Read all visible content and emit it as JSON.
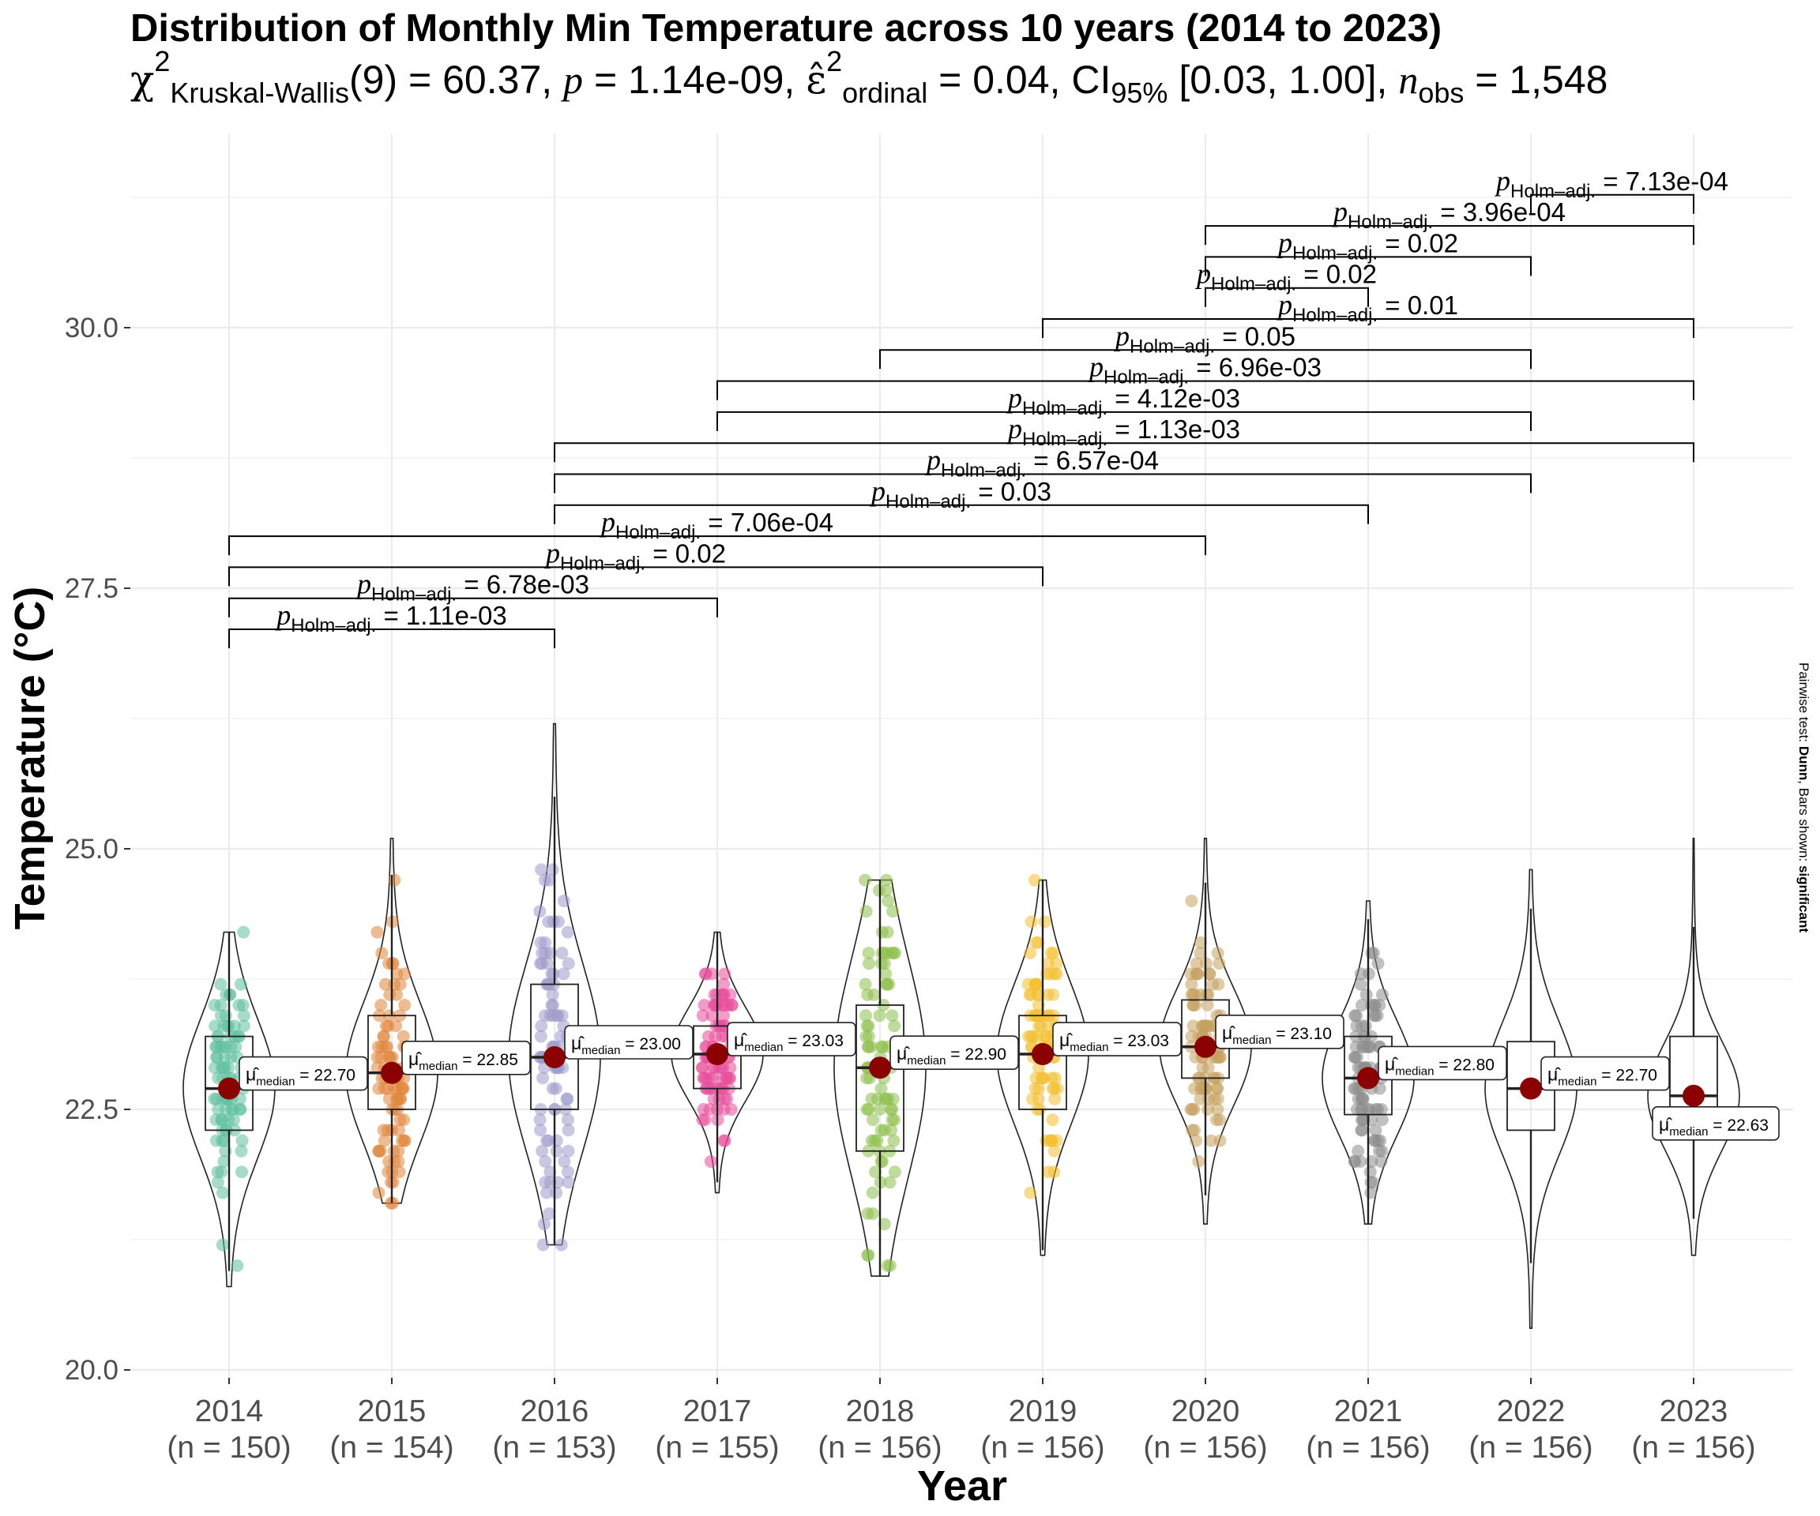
{
  "title": "Distribution of Monthly Min Temperature across 10 years (2014 to 2023)",
  "subtitle": {
    "test_symbol": "χ",
    "test_sub": "Kruskal-Wallis",
    "test_sup": "2",
    "df": "(9)",
    "statistic": "60.37",
    "p_symbol": "p",
    "p_value": "1.14e-09",
    "effect_symbol": "ε̂",
    "effect_sub": "ordinal",
    "effect_sup": "2",
    "effect_value": "0.04",
    "ci_label": "CI",
    "ci_sub": "95%",
    "ci_value": "[0.03, 1.00]",
    "n_symbol": "n",
    "n_sub": "obs",
    "n_value": "1,548"
  },
  "caption": {
    "prefix": "Pairwise test: ",
    "test": "Dunn",
    "middle": ", Bars shown: ",
    "shown": "significant"
  },
  "colors": {
    "2014": "#5fbf9f",
    "2015": "#e0853a",
    "2016": "#9c9acb",
    "2017": "#e84d9a",
    "2018": "#8cc04a",
    "2019": "#f2c02e",
    "2020": "#c4a15e",
    "2021": "#8c8c8c",
    "median_point": "#8b0000",
    "grid": "#ebebeb"
  },
  "chart_data": {
    "type": "violin-box-scatter",
    "title": "Distribution of Monthly Min Temperature across 10 years (2014 to 2023)",
    "xlabel": "Year",
    "ylabel": "Temperature (°C)",
    "ylim": [
      20,
      31.5
    ],
    "y_ticks": [
      "20.0",
      "22.5",
      "25.0",
      "27.5",
      "30.0"
    ],
    "y_tick_values": [
      20.0,
      22.5,
      25.0,
      27.5,
      30.0
    ],
    "categories": [
      "2014",
      "2015",
      "2016",
      "2017",
      "2018",
      "2019",
      "2020",
      "2021",
      "2022",
      "2023"
    ],
    "n_labels": [
      "(n = 150)",
      "(n = 154)",
      "(n = 153)",
      "(n = 155)",
      "(n = 156)",
      "(n = 156)",
      "(n = 156)",
      "(n = 156)",
      "(n = 156)",
      "(n = 156)"
    ],
    "median_symbol": "μ̂",
    "median_sub": "median",
    "medians": [
      22.7,
      22.85,
      23.0,
      23.03,
      22.9,
      23.03,
      23.1,
      22.8,
      22.7,
      22.63
    ],
    "median_labels": [
      "22.70",
      "22.85",
      "23.00",
      "23.03",
      "22.90",
      "23.03",
      "23.10",
      "22.80",
      "22.70",
      "22.63"
    ],
    "q1": [
      22.3,
      22.5,
      22.5,
      22.7,
      22.1,
      22.5,
      22.8,
      22.45,
      22.3,
      22.5
    ],
    "q3": [
      23.2,
      23.4,
      23.7,
      23.3,
      23.5,
      23.4,
      23.55,
      23.2,
      23.15,
      23.2
    ],
    "min": [
      20.8,
      21.6,
      21.2,
      21.7,
      20.9,
      21.1,
      21.4,
      21.4,
      20.4,
      21.1
    ],
    "max": [
      24.2,
      25.1,
      26.2,
      24.2,
      24.7,
      24.7,
      25.1,
      24.5,
      24.8,
      25.1
    ],
    "points_shown": [
      true,
      true,
      true,
      true,
      true,
      true,
      true,
      true,
      false,
      false
    ],
    "pairwise": {
      "label_symbol": "p",
      "label_sub": "Holm–adj.",
      "comparisons": [
        {
          "group1": "2014",
          "group2": "2016",
          "p": "1.11e-03"
        },
        {
          "group1": "2014",
          "group2": "2017",
          "p": "6.78e-03"
        },
        {
          "group1": "2014",
          "group2": "2019",
          "p": "0.02"
        },
        {
          "group1": "2014",
          "group2": "2020",
          "p": "7.06e-04"
        },
        {
          "group1": "2016",
          "group2": "2021",
          "p": "0.03"
        },
        {
          "group1": "2016",
          "group2": "2022",
          "p": "6.57e-04"
        },
        {
          "group1": "2016",
          "group2": "2023",
          "p": "1.13e-03"
        },
        {
          "group1": "2017",
          "group2": "2022",
          "p": "4.12e-03"
        },
        {
          "group1": "2017",
          "group2": "2023",
          "p": "6.96e-03"
        },
        {
          "group1": "2018",
          "group2": "2022",
          "p": "0.05"
        },
        {
          "group1": "2019",
          "group2": "2023",
          "p": "0.01"
        },
        {
          "group1": "2020",
          "group2": "2021",
          "p": "0.02"
        },
        {
          "group1": "2020",
          "group2": "2022",
          "p": "0.02"
        },
        {
          "group1": "2020",
          "group2": "2023",
          "p": "3.96e-04"
        },
        {
          "group1": "2022",
          "group2": "2023",
          "p": "7.13e-04"
        }
      ]
    }
  }
}
